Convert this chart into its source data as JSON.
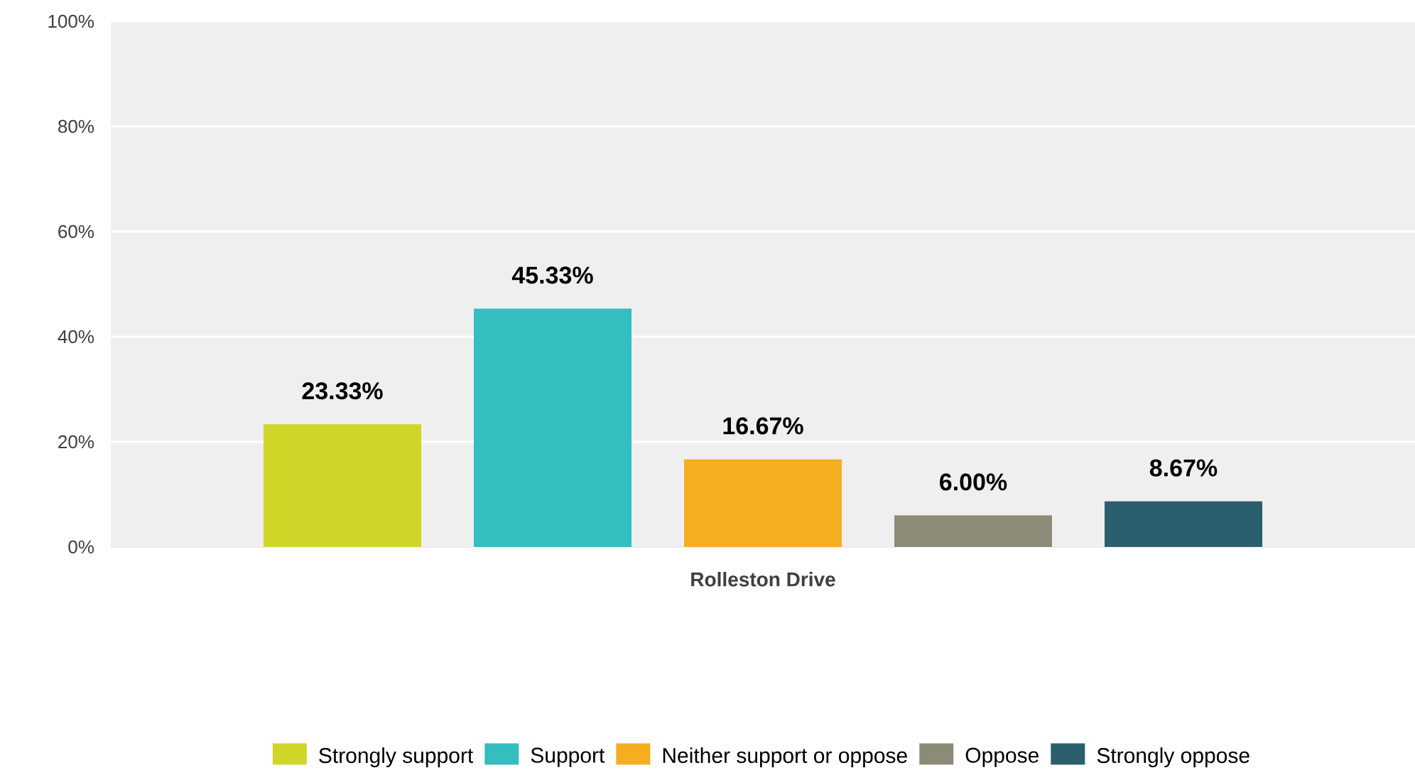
{
  "chart_data": {
    "type": "bar",
    "categories": [
      "Rolleston Drive"
    ],
    "series": [
      {
        "name": "Strongly support",
        "color": "#cfd628",
        "values": [
          23.33
        ],
        "value_labels": [
          "23.33%"
        ]
      },
      {
        "name": "Support",
        "color": "#33bec0",
        "values": [
          45.33
        ],
        "value_labels": [
          "45.33%"
        ]
      },
      {
        "name": "Neither support or oppose",
        "color": "#f5ae1f",
        "values": [
          16.67
        ],
        "value_labels": [
          "16.67%"
        ]
      },
      {
        "name": "Oppose",
        "color": "#8b8b78",
        "values": [
          6.0
        ],
        "value_labels": [
          "6.00%"
        ]
      },
      {
        "name": "Strongly oppose",
        "color": "#2c5f6e",
        "values": [
          8.67
        ],
        "value_labels": [
          "8.67%"
        ]
      }
    ],
    "ylim": [
      0,
      100
    ],
    "yticks": [
      {
        "value": 0,
        "label": "0%"
      },
      {
        "value": 20,
        "label": "20%"
      },
      {
        "value": 40,
        "label": "40%"
      },
      {
        "value": 60,
        "label": "60%"
      },
      {
        "value": 80,
        "label": "80%"
      },
      {
        "value": 100,
        "label": "100%"
      }
    ],
    "grid": "y",
    "legend": "bottom"
  }
}
